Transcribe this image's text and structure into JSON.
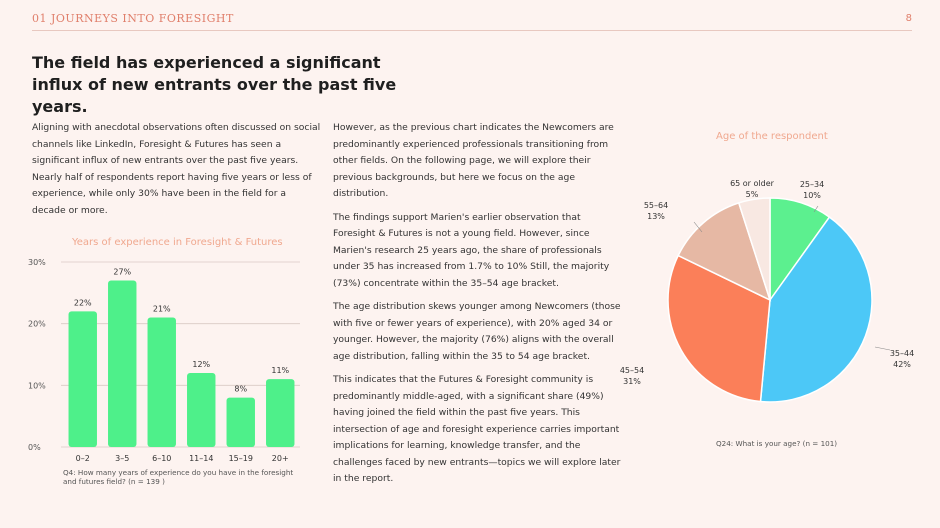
{
  "header": {
    "section_label": "01 JOURNEYS INTO FORESIGHT",
    "page_number": "8"
  },
  "headline": "The field has experienced a significant influx of new entrants over the past five years.",
  "left_paragraph": "Aligning with anecdotal observations often discussed on social channels like LinkedIn, Foresight & Futures has seen a significant influx of new entrants over the past five years. Nearly half of respondents report having five years or less of experience, while only 30% have been in the field for a decade or more.",
  "middle_paragraphs": [
    "However, as the previous chart indicates the Newcomers are predominantly experienced professionals transitioning from other fields. On the following page, we will explore their previous backgrounds, but here we focus on the age distribution.",
    "The findings support Marien's earlier observation that Foresight & Futures is not a young field. However, since Marien's research 25 years ago, the share of professionals under 35 has increased from 1.7% to 10% Still, the majority (73%) concentrate within the 35–54 age bracket.",
    "The age distribution skews younger among Newcomers (those with five or fewer years of experience), with 20% aged 34 or younger. However, the majority (76%) aligns with the overall age distribution, falling within the 35 to 54 age bracket.",
    "This indicates that the Futures & Foresight community is predominantly middle-aged, with a significant share (49%) having joined the field within the past five years. This intersection of age and foresight experience carries important implications for learning, knowledge transfer, and the challenges faced by new entrants—topics we will explore later in the report."
  ],
  "chart_data": [
    {
      "type": "bar",
      "title": "Years of experience in Foresight & Futures",
      "categories": [
        "0–2",
        "3–5",
        "6–10",
        "11–14",
        "15–19",
        "20+"
      ],
      "values": [
        22,
        27,
        21,
        12,
        8,
        11
      ],
      "value_labels": [
        "22%",
        "27%",
        "21%",
        "12%",
        "8%",
        "11%"
      ],
      "ylim": [
        0,
        30
      ],
      "yticks": [
        0,
        10,
        20,
        30
      ],
      "ytick_labels": [
        "0%",
        "10%",
        "20%",
        "30%"
      ],
      "grid": true,
      "color": "#4ef08a",
      "caption": "Q4: How many years of experience do you have in the foresight and futures field? (n = 139 )"
    },
    {
      "type": "pie",
      "title": "Age of the respondent",
      "slices": [
        {
          "label": "25–34",
          "value": 10,
          "display": "10%",
          "color": "#5cf08f"
        },
        {
          "label": "35–44",
          "value": 42,
          "display": "42%",
          "color": "#4cc8f7"
        },
        {
          "label": "45–54",
          "value": 31,
          "display": "31%",
          "color": "#fb7f59"
        },
        {
          "label": "55–64",
          "value": 13,
          "display": "13%",
          "color": "#e6b8a4"
        },
        {
          "label": "65 or older",
          "value": 5,
          "display": "5%",
          "color": "#f8e8e2"
        }
      ],
      "caption": "Q24: What is your age? (n = 101)"
    }
  ]
}
